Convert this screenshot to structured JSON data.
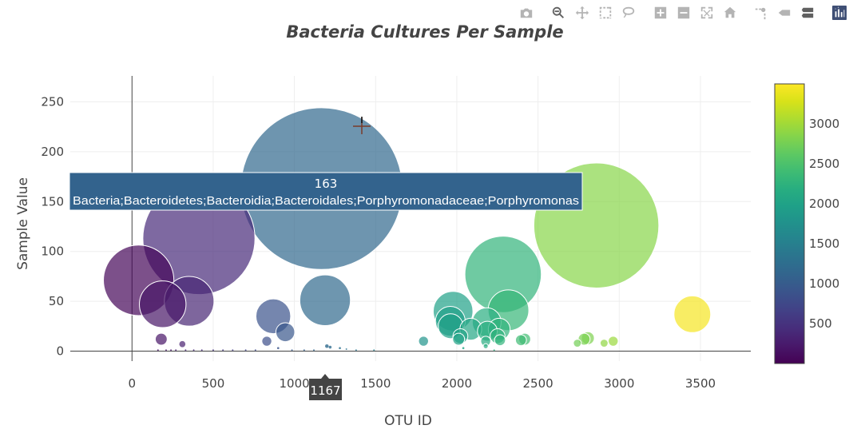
{
  "chart_data": {
    "type": "scatter",
    "subtype": "bubble",
    "title": "Bacteria Cultures Per Sample",
    "xlabel": "OTU ID",
    "ylabel": "Sample Value",
    "xlim": [
      -380,
      3810
    ],
    "ylim": [
      -10,
      276
    ],
    "xticks": [
      0,
      500,
      1000,
      1500,
      2000,
      2500,
      3000,
      3500
    ],
    "yticks": [
      0,
      50,
      100,
      150,
      200,
      250
    ],
    "grid": true,
    "colorscale": "Viridis",
    "colorbar": {
      "range": [
        1,
        3500
      ],
      "ticks": [
        500,
        1000,
        1500,
        2000,
        2500,
        3000
      ]
    },
    "points": [
      {
        "x": 41,
        "y": 71
      },
      {
        "x": 180,
        "y": 12
      },
      {
        "x": 189,
        "y": 47
      },
      {
        "x": 310,
        "y": 7
      },
      {
        "x": 352,
        "y": 50
      },
      {
        "x": 412,
        "y": 113
      },
      {
        "x": 830,
        "y": 10
      },
      {
        "x": 870,
        "y": 35
      },
      {
        "x": 944,
        "y": 19
      },
      {
        "x": 1167,
        "y": 163
      },
      {
        "x": 1189,
        "y": 51
      },
      {
        "x": 1795,
        "y": 10
      },
      {
        "x": 1977,
        "y": 40
      },
      {
        "x": 1960,
        "y": 30
      },
      {
        "x": 1962,
        "y": 25
      },
      {
        "x": 2011,
        "y": 12
      },
      {
        "x": 2022,
        "y": 15
      },
      {
        "x": 2086,
        "y": 22
      },
      {
        "x": 2184,
        "y": 29
      },
      {
        "x": 2188,
        "y": 20
      },
      {
        "x": 2178,
        "y": 10
      },
      {
        "x": 2178,
        "y": 5
      },
      {
        "x": 2261,
        "y": 22
      },
      {
        "x": 2251,
        "y": 15
      },
      {
        "x": 2266,
        "y": 11
      },
      {
        "x": 2285,
        "y": 77
      },
      {
        "x": 2318,
        "y": 41
      },
      {
        "x": 2395,
        "y": 11
      },
      {
        "x": 2418,
        "y": 12
      },
      {
        "x": 2742,
        "y": 8
      },
      {
        "x": 2784,
        "y": 12
      },
      {
        "x": 2807,
        "y": 13
      },
      {
        "x": 2907,
        "y": 8
      },
      {
        "x": 2963,
        "y": 10
      },
      {
        "x": 2859,
        "y": 126
      },
      {
        "x": 3450,
        "y": 37
      }
    ],
    "tiny_points": [
      {
        "x": 160,
        "y": 1
      },
      {
        "x": 210,
        "y": 1
      },
      {
        "x": 240,
        "y": 1
      },
      {
        "x": 270,
        "y": 1
      },
      {
        "x": 330,
        "y": 1
      },
      {
        "x": 380,
        "y": 1
      },
      {
        "x": 430,
        "y": 1
      },
      {
        "x": 500,
        "y": 1
      },
      {
        "x": 560,
        "y": 1
      },
      {
        "x": 620,
        "y": 1
      },
      {
        "x": 700,
        "y": 1
      },
      {
        "x": 760,
        "y": 1
      },
      {
        "x": 900,
        "y": 3
      },
      {
        "x": 985,
        "y": 1
      },
      {
        "x": 1060,
        "y": 1
      },
      {
        "x": 1120,
        "y": 1
      },
      {
        "x": 1200,
        "y": 5
      },
      {
        "x": 1220,
        "y": 4
      },
      {
        "x": 1280,
        "y": 3
      },
      {
        "x": 1320,
        "y": 2
      },
      {
        "x": 1380,
        "y": 1
      },
      {
        "x": 1490,
        "y": 1
      },
      {
        "x": 2040,
        "y": 3
      },
      {
        "x": 2230,
        "y": 1
      }
    ],
    "hover": {
      "x": 1167,
      "y_label": "163",
      "text": "Bacteria;Bacteroidetes;Bacteroidia;Bacteroidales;Porphyromonadaceae;Porphyromonas",
      "x_label": "1167"
    },
    "cursor": {
      "x": 1400,
      "y": 226
    }
  },
  "modebar": {
    "icons": [
      "camera-icon",
      "zoom-icon",
      "pan-icon",
      "box-select-icon",
      "lasso-icon",
      "zoom-in-icon",
      "zoom-out-icon",
      "autoscale-icon",
      "reset-axes-icon",
      "spike-lines-icon",
      "hover-closest-icon",
      "hover-compare-icon",
      "plotly-logo-icon"
    ]
  }
}
